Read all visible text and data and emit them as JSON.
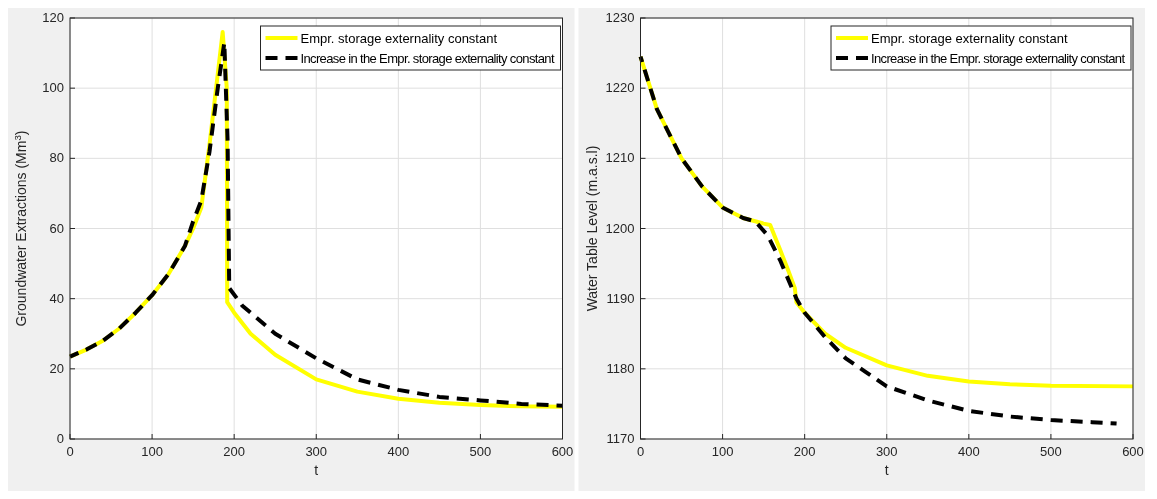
{
  "chart_data": [
    {
      "type": "line",
      "xlabel": "t",
      "ylabel": "Groundwater Extractions (Mm$^{3}$)",
      "xlim": [
        0,
        600
      ],
      "ylim": [
        0,
        120
      ],
      "xticks": [
        0,
        100,
        200,
        300,
        400,
        500,
        600
      ],
      "yticks": [
        0,
        20,
        40,
        60,
        80,
        100,
        120
      ],
      "grid": true,
      "legend": "top right",
      "series": [
        {
          "name": "Empr. storage externality constant",
          "color": "#ffff00",
          "line_style": "solid",
          "x": [
            0,
            20,
            40,
            60,
            80,
            100,
            120,
            140,
            150,
            160,
            170,
            180,
            186,
            191,
            191.5,
            200,
            220,
            250,
            300,
            350,
            400,
            450,
            500,
            550,
            600
          ],
          "values": [
            23.5,
            25.5,
            28,
            31.5,
            36,
            41,
            47,
            55,
            60,
            66,
            84,
            104,
            116,
            100,
            39,
            36,
            30,
            24,
            17,
            13.5,
            11.5,
            10.3,
            9.7,
            9.3,
            9.2
          ]
        },
        {
          "name": "Increase in the Empr. storage externality constant",
          "color": "#000000",
          "line_style": "dashed",
          "x": [
            0,
            20,
            40,
            60,
            80,
            100,
            120,
            140,
            150,
            160,
            170,
            180,
            188,
            192,
            194,
            210,
            250,
            300,
            350,
            400,
            450,
            500,
            550,
            600
          ],
          "values": [
            23.5,
            25.5,
            28,
            31.5,
            36,
            41,
            47,
            55,
            62,
            68,
            82,
            100,
            113,
            85,
            43,
            38,
            30,
            23,
            17,
            14,
            12,
            11,
            10,
            9.5
          ]
        }
      ]
    },
    {
      "type": "line",
      "xlabel": "t",
      "ylabel": "Water Table Level (m.a.s.l)",
      "xlim": [
        0,
        600
      ],
      "ylim": [
        1170,
        1230
      ],
      "xticks": [
        0,
        100,
        200,
        300,
        400,
        500,
        600
      ],
      "yticks": [
        1170,
        1180,
        1190,
        1200,
        1210,
        1220,
        1230
      ],
      "grid": true,
      "legend": "top right",
      "series": [
        {
          "name": "Empr. storage externality constant",
          "color": "#ffff00",
          "line_style": "solid",
          "x": [
            0,
            20,
            50,
            75,
            100,
            125,
            150,
            158,
            170,
            180,
            188,
            190,
            200,
            225,
            250,
            300,
            350,
            400,
            450,
            500,
            600
          ],
          "values": [
            1224.5,
            1217,
            1210,
            1206,
            1203,
            1201.5,
            1200.7,
            1200.5,
            1197,
            1194,
            1191.5,
            1189.5,
            1188,
            1185,
            1183,
            1180.5,
            1179,
            1178.2,
            1177.8,
            1177.6,
            1177.5
          ]
        },
        {
          "name": "Increase in the Empr. storage externality constant",
          "color": "#000000",
          "line_style": "dashed",
          "x": [
            0,
            20,
            50,
            75,
            100,
            125,
            140,
            155,
            170,
            190,
            200,
            225,
            250,
            275,
            300,
            350,
            400,
            450,
            500,
            550,
            580
          ],
          "values": [
            1224.5,
            1217,
            1210,
            1206,
            1203,
            1201.5,
            1201,
            1199,
            1195.5,
            1190,
            1188,
            1184.5,
            1181.5,
            1179.5,
            1177.5,
            1175.5,
            1174,
            1173.2,
            1172.7,
            1172.4,
            1172.2
          ]
        }
      ]
    }
  ]
}
